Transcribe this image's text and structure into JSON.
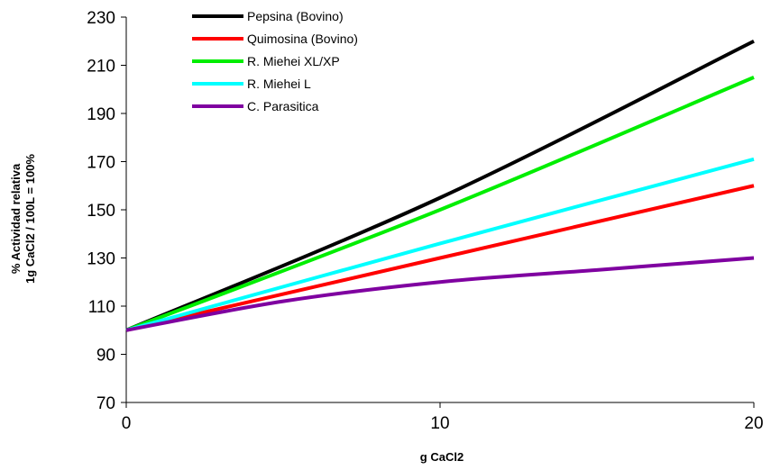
{
  "chart_data": {
    "type": "line",
    "title": "",
    "xlabel": "g CaCl2",
    "ylabel_lines": [
      "% Actividad relativa",
      "1g CaCl2 / 100L = 100%"
    ],
    "xlim": [
      0,
      20
    ],
    "ylim": [
      70,
      230
    ],
    "x_ticks": [
      0,
      10,
      20
    ],
    "y_ticks": [
      70,
      90,
      110,
      130,
      150,
      170,
      190,
      210,
      230
    ],
    "grid": false,
    "legend_position": "top-left",
    "series": [
      {
        "name": "Pepsina (Bovino)",
        "color": "#000000",
        "points": [
          [
            0,
            100
          ],
          [
            10,
            155
          ],
          [
            20,
            220
          ]
        ]
      },
      {
        "name": "Quimosina (Bovino)",
        "color": "#ff0000",
        "points": [
          [
            0,
            100
          ],
          [
            10,
            130
          ],
          [
            20,
            160
          ]
        ]
      },
      {
        "name": "R. Miehei XL/XP",
        "color": "#00ee00",
        "points": [
          [
            0,
            100
          ],
          [
            10,
            150
          ],
          [
            20,
            205
          ]
        ]
      },
      {
        "name": "R. Miehei L",
        "color": "#00ffff",
        "points": [
          [
            0,
            100
          ],
          [
            10,
            136
          ],
          [
            20,
            171
          ]
        ]
      },
      {
        "name": "C. Parasitica",
        "color": "#7f00a0",
        "points": [
          [
            0,
            100
          ],
          [
            5,
            112
          ],
          [
            10,
            120
          ],
          [
            15,
            125
          ],
          [
            20,
            130
          ]
        ]
      }
    ]
  }
}
